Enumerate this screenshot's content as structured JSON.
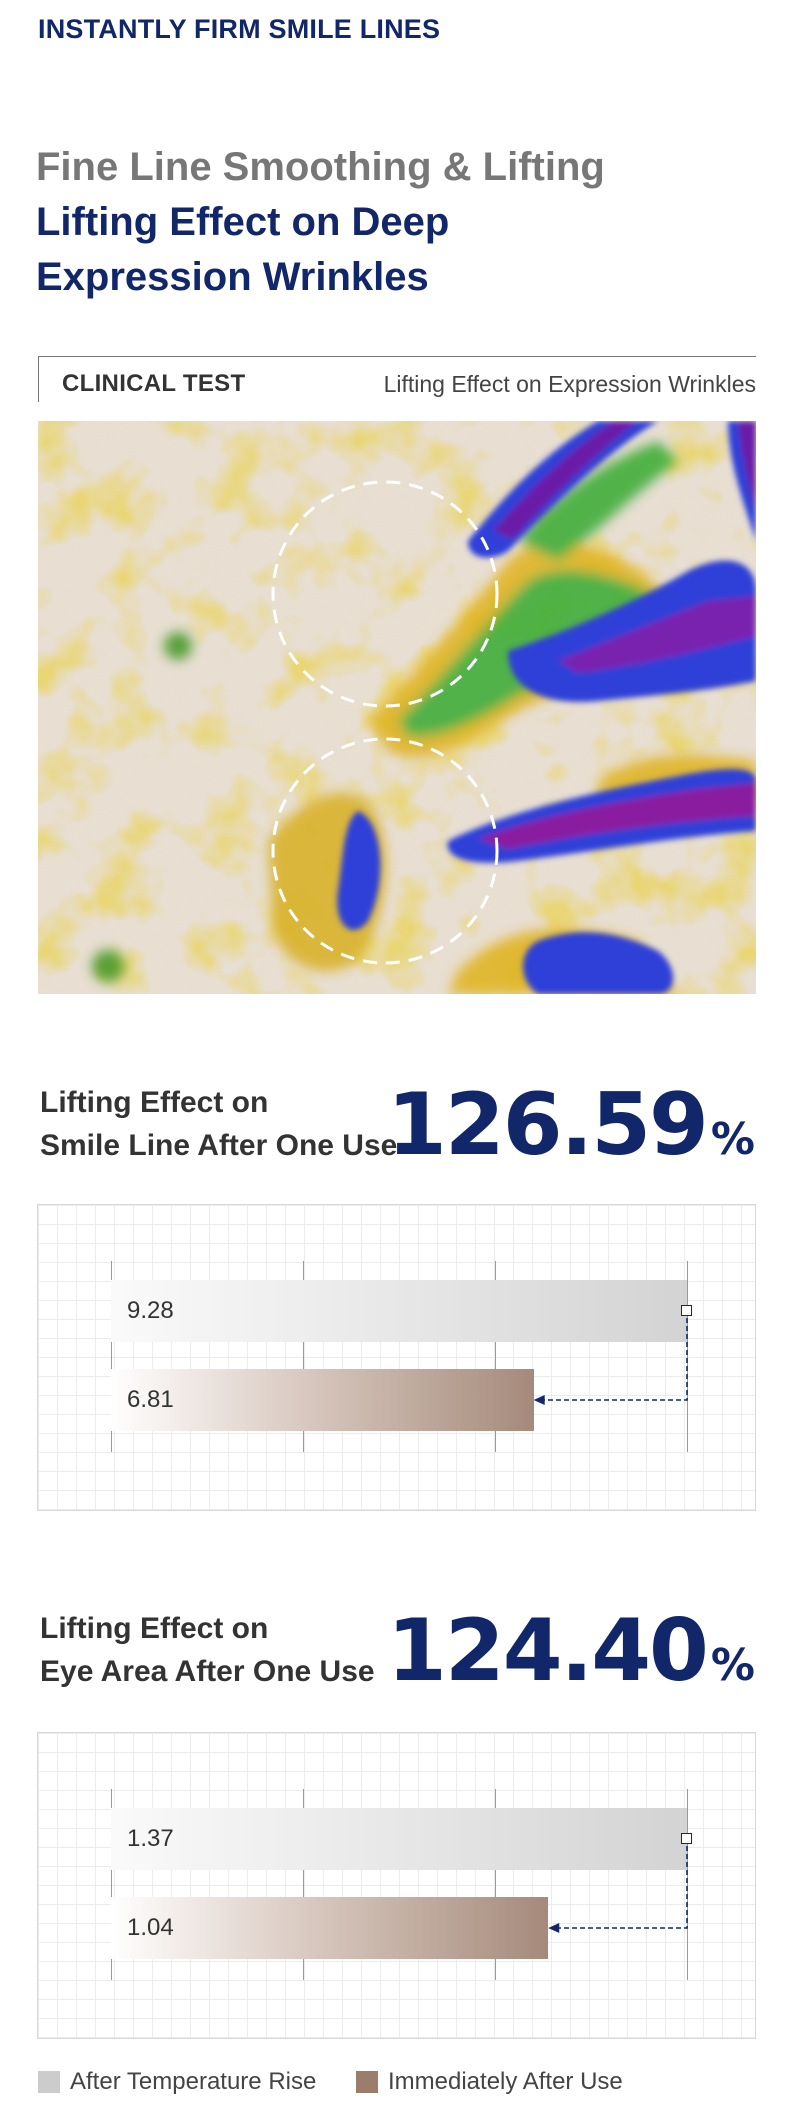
{
  "header": {
    "eyebrow": "INSTANTLY FIRM SMILE LINES",
    "headline_grey": "Fine Line Smoothing & Lifting",
    "headline_line1": "Lifting Effect on Deep",
    "headline_line2": "Expression Wrinkles"
  },
  "clinical": {
    "tag": "CLINICAL TEST",
    "description": "Lifting Effect on Expression Wrinkles"
  },
  "scan_image": {
    "icon": "skin-scan-heatmap-image"
  },
  "colors": {
    "navy": "#12276a",
    "after_temperature_rise": "#c9c9c9",
    "immediately_after_use": "#9c7c6a"
  },
  "stats": [
    {
      "label_line1": "Lifting Effect on",
      "label_line2": "Smile Line After One Use",
      "value": "126.59",
      "unit": "%",
      "chart": {
        "after_temperature_rise": "9.28",
        "immediately_after_use": "6.81",
        "after_value": 9.28,
        "immediate_value": 6.81
      }
    },
    {
      "label_line1": "Lifting Effect on",
      "label_line2": "Eye Area After One Use",
      "value": "124.40",
      "unit": "%",
      "chart": {
        "after_temperature_rise": "1.37",
        "immediately_after_use": "1.04",
        "after_value": 1.37,
        "immediate_value": 1.04
      }
    }
  ],
  "legend": [
    {
      "label": "After Temperature Rise",
      "color": "#cccccc"
    },
    {
      "label": "Immediately After Use",
      "color": "#9c7c6a"
    }
  ]
}
